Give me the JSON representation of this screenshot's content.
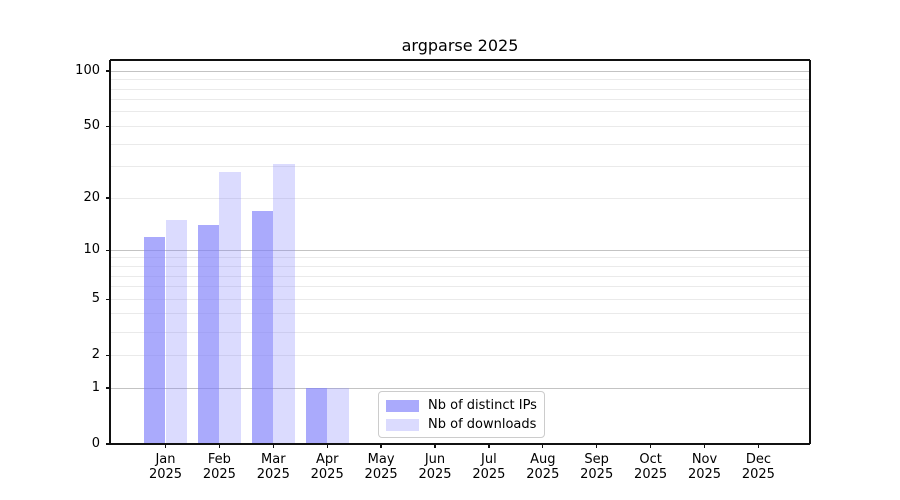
{
  "figure": {
    "background": "#ffffff",
    "text_color": "#000000",
    "spine_color": "#111111",
    "major_grid_color": "#c3c3c3",
    "minor_grid_color": "#eaeaea"
  },
  "chart_data": {
    "type": "bar",
    "title": "argparse 2025",
    "categories": [
      "Jan",
      "Feb",
      "Mar",
      "Apr",
      "May",
      "Jun",
      "Jul",
      "Aug",
      "Sep",
      "Oct",
      "Nov",
      "Dec"
    ],
    "category_year": "2025",
    "series": [
      {
        "name": "Nb of distinct IPs",
        "base_color": "#7c7cfa",
        "alpha": 0.65,
        "values": [
          12,
          14,
          17,
          1,
          0,
          0,
          0,
          0,
          0,
          0,
          0,
          0
        ]
      },
      {
        "name": "Nb of downloads",
        "base_color": "#7c7cfa",
        "alpha": 0.28,
        "values": [
          15,
          28,
          31,
          1,
          0,
          0,
          0,
          0,
          0,
          0,
          0,
          0
        ]
      }
    ],
    "y_axis": {
      "scale": "log1p",
      "range": [
        0,
        115
      ],
      "ticks": [
        0,
        1,
        2,
        5,
        10,
        20,
        50,
        100
      ],
      "major_gridlines": [
        1,
        10,
        100
      ],
      "minor_gridlines": [
        2,
        3,
        4,
        5,
        6,
        7,
        8,
        9,
        20,
        30,
        40,
        50,
        60,
        70,
        80,
        90
      ]
    },
    "grid": true,
    "legend_position": "lower center"
  }
}
